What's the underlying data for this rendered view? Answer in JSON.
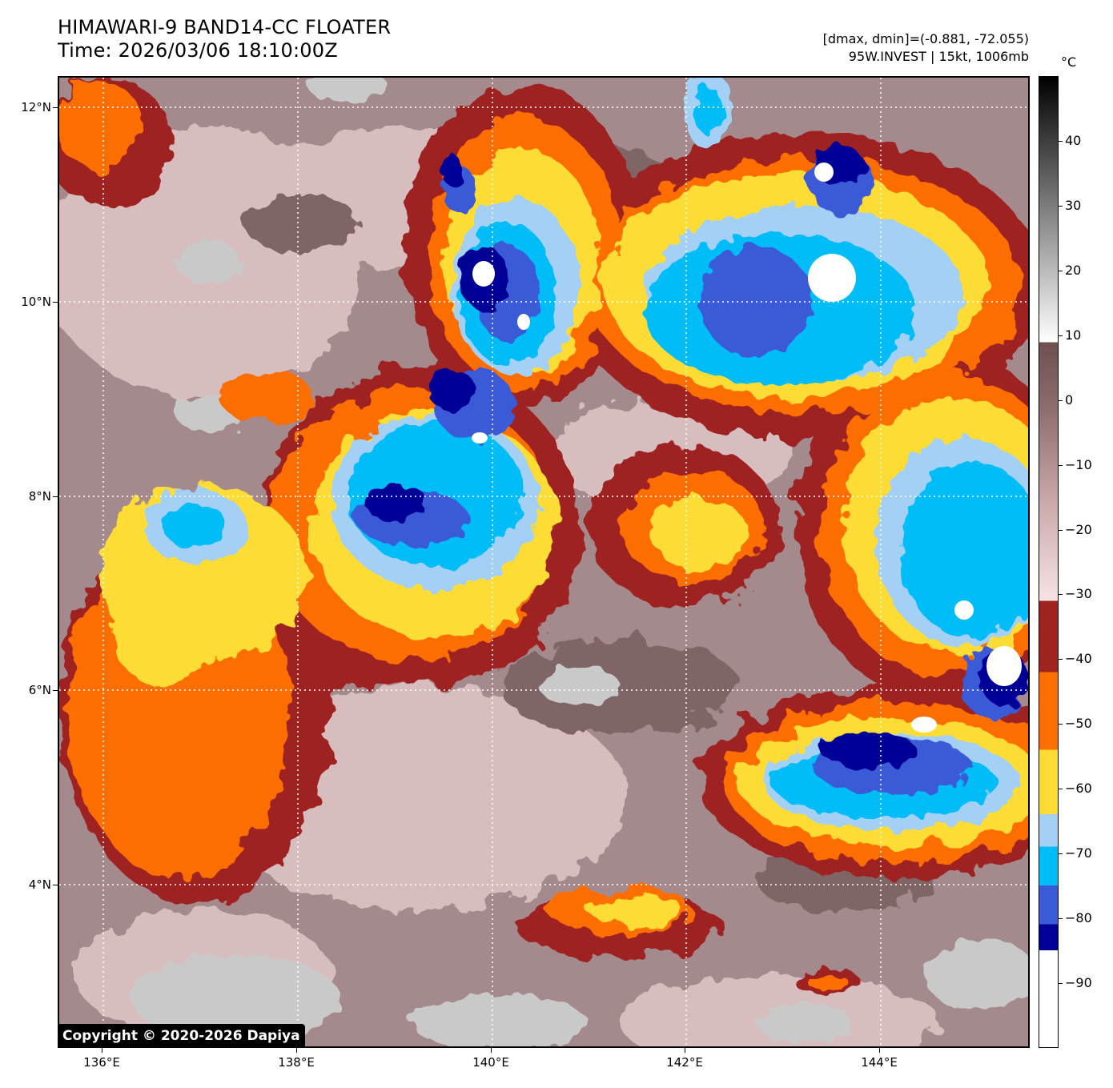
{
  "header": {
    "title_line1": "HIMAWARI-9 BAND14-CC FLOATER",
    "title_line2": "Time: 2026/03/06 18:10:00Z",
    "info_line1": "[dmax, dmin]=(-0.881, -72.055)",
    "info_line2": "95W.INVEST | 15kt, 1006mb"
  },
  "copyright": "Copyright © 2020-2026 Dapiya",
  "axes": {
    "lat_labels": [
      "12°N",
      "10°N",
      "8°N",
      "6°N",
      "4°N"
    ],
    "lon_labels": [
      "136°E",
      "138°E",
      "140°E",
      "142°E",
      "144°E"
    ]
  },
  "colorbar": {
    "unit": "°C",
    "tick_labels": [
      "40",
      "30",
      "20",
      "10",
      "0",
      "−10",
      "−20",
      "−30",
      "−40",
      "−50",
      "−60",
      "−70",
      "−80",
      "−90"
    ],
    "range": [
      -100,
      50
    ],
    "bands": [
      {
        "from": -100,
        "to": -85,
        "color": "#ffffff"
      },
      {
        "from": -85,
        "to": -81,
        "color": "#000096"
      },
      {
        "from": -81,
        "to": -75,
        "color": "#3a5ad8"
      },
      {
        "from": -75,
        "to": -69,
        "color": "#00bdf8"
      },
      {
        "from": -69,
        "to": -64,
        "color": "#a4d0f5"
      },
      {
        "from": -64,
        "to": -54,
        "color": "#fcdc34"
      },
      {
        "from": -54,
        "to": -42,
        "color": "#fc6e00"
      },
      {
        "from": -42,
        "to": -31,
        "color": "#9e2420"
      }
    ],
    "grey_section": {
      "from": -31,
      "to": 9,
      "colors": [
        "#f6e4e4",
        "#c8a6a8",
        "#8c6c6c",
        "#6e5050"
      ]
    },
    "mono_section": {
      "from": 9,
      "to": 50,
      "colors": [
        "#ffffff",
        "#808080",
        "#000000"
      ]
    }
  },
  "imagery_colors": {
    "background": "#a48a8c",
    "pink": "#e2c7c8",
    "dark": "#7a5e60",
    "grey": "#c9c9c9",
    "red": "#9e2420",
    "orange": "#fc6e00",
    "yellow": "#fcdc34",
    "lightblue": "#a4d0f5",
    "cyan": "#00bdf8",
    "blue": "#3a5ad8",
    "navy": "#000096",
    "white": "#ffffff"
  }
}
